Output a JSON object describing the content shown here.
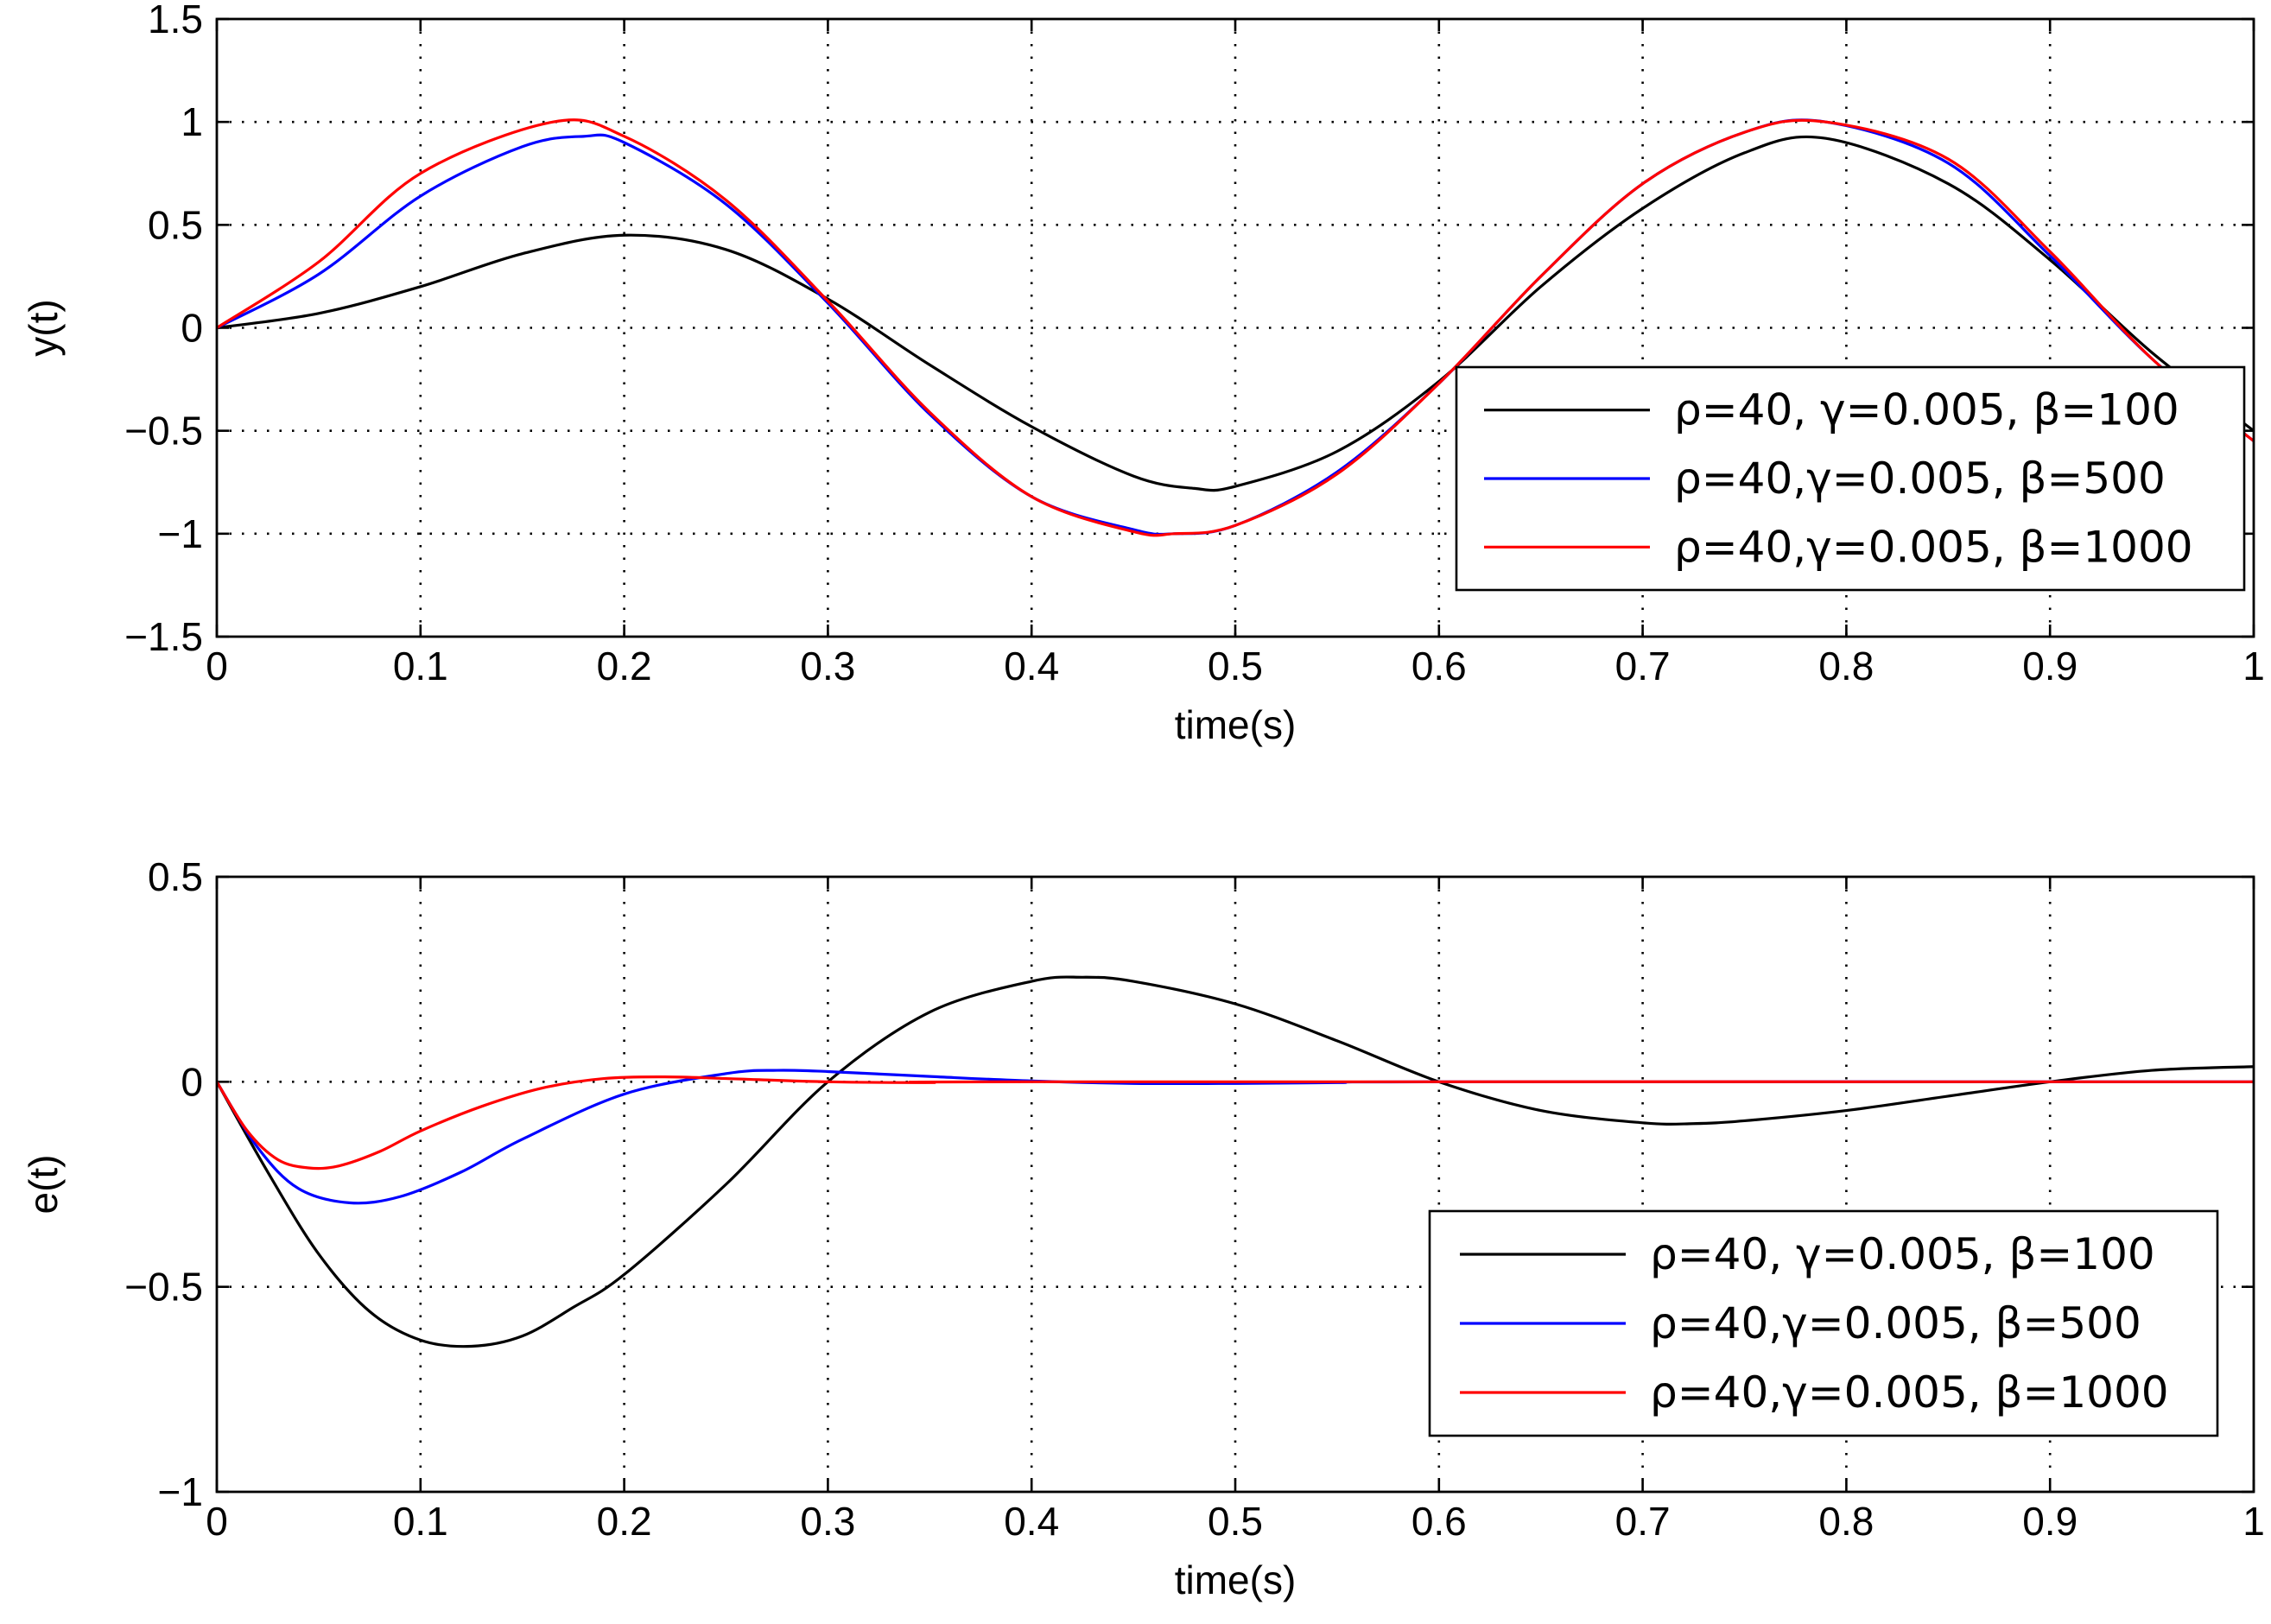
{
  "chart_data": [
    {
      "type": "line",
      "id": "y",
      "title": "",
      "xlabel": "time(s)",
      "ylabel": "y(t)",
      "xlim": [
        0,
        1
      ],
      "ylim": [
        -1.5,
        1.5
      ],
      "xticks": [
        0,
        0.1,
        0.2,
        0.3,
        0.4,
        0.5,
        0.6,
        0.7,
        0.8,
        0.9,
        1
      ],
      "xtick_labels": [
        "0",
        "0.1",
        "0.2",
        "0.3",
        "0.4",
        "0.5",
        "0.6",
        "0.7",
        "0.8",
        "0.9",
        "1"
      ],
      "yticks": [
        -1.5,
        -1,
        -0.5,
        0,
        0.5,
        1,
        1.5
      ],
      "ytick_labels": [
        "−1.5",
        "−1",
        "−0.5",
        "0",
        "0.5",
        "1",
        "1.5"
      ],
      "grid": true,
      "legend_position": "right",
      "series": [
        {
          "name": "ρ=40, γ=0.005, β=100",
          "color": "#000000",
          "x": [
            0,
            0.05,
            0.1,
            0.15,
            0.2,
            0.25,
            0.3,
            0.35,
            0.4,
            0.45,
            0.48,
            0.5,
            0.55,
            0.6,
            0.65,
            0.7,
            0.75,
            0.79,
            0.85,
            0.9,
            0.95,
            1
          ],
          "y": [
            0,
            0.07,
            0.2,
            0.36,
            0.45,
            0.38,
            0.14,
            -0.18,
            -0.48,
            -0.72,
            -0.78,
            -0.77,
            -0.6,
            -0.26,
            0.2,
            0.58,
            0.85,
            0.92,
            0.7,
            0.33,
            -0.12,
            -0.5
          ]
        },
        {
          "name": "ρ=40,γ=0.005, β=500",
          "color": "#0000ff",
          "x": [
            0,
            0.05,
            0.1,
            0.15,
            0.18,
            0.2,
            0.25,
            0.3,
            0.35,
            0.4,
            0.45,
            0.47,
            0.5,
            0.55,
            0.6,
            0.65,
            0.7,
            0.75,
            0.79,
            0.85,
            0.9,
            0.95,
            1
          ],
          "y": [
            0,
            0.26,
            0.64,
            0.88,
            0.93,
            0.9,
            0.6,
            0.12,
            -0.42,
            -0.82,
            -0.98,
            -1.0,
            -0.96,
            -0.7,
            -0.27,
            0.25,
            0.7,
            0.95,
            1.0,
            0.8,
            0.35,
            -0.15,
            -0.55
          ]
        },
        {
          "name": "ρ=40,γ=0.005, β=1000",
          "color": "#ff0000",
          "x": [
            0,
            0.05,
            0.1,
            0.165,
            0.2,
            0.25,
            0.3,
            0.35,
            0.4,
            0.45,
            0.47,
            0.5,
            0.55,
            0.6,
            0.65,
            0.7,
            0.75,
            0.79,
            0.85,
            0.9,
            0.95,
            1
          ],
          "y": [
            0,
            0.32,
            0.75,
            1.0,
            0.93,
            0.62,
            0.13,
            -0.41,
            -0.82,
            -0.99,
            -1.0,
            -0.96,
            -0.71,
            -0.27,
            0.25,
            0.7,
            0.95,
            1.0,
            0.82,
            0.37,
            -0.15,
            -0.55
          ]
        }
      ]
    },
    {
      "type": "line",
      "id": "e",
      "title": "",
      "xlabel": "time(s)",
      "ylabel": "e(t)",
      "xlim": [
        0,
        1
      ],
      "ylim": [
        -1,
        0.5
      ],
      "xticks": [
        0,
        0.1,
        0.2,
        0.3,
        0.4,
        0.5,
        0.6,
        0.7,
        0.8,
        0.9,
        1
      ],
      "xtick_labels": [
        "0",
        "0.1",
        "0.2",
        "0.3",
        "0.4",
        "0.5",
        "0.6",
        "0.7",
        "0.8",
        "0.9",
        "1"
      ],
      "yticks": [
        -1,
        -0.5,
        0,
        0.5
      ],
      "ytick_labels": [
        "−1",
        "−0.5",
        "0",
        "0.5"
      ],
      "grid": true,
      "legend_position": "lower-right",
      "series": [
        {
          "name": "ρ=40, γ=0.005, β=100",
          "color": "#000000",
          "x": [
            0,
            0.025,
            0.05,
            0.075,
            0.1,
            0.125,
            0.15,
            0.175,
            0.2,
            0.25,
            0.3,
            0.35,
            0.4,
            0.425,
            0.45,
            0.5,
            0.55,
            0.6,
            0.65,
            0.7,
            0.725,
            0.75,
            0.8,
            0.85,
            0.9,
            0.95,
            1
          ],
          "y": [
            0,
            -0.22,
            -0.42,
            -0.56,
            -0.63,
            -0.645,
            -0.62,
            -0.55,
            -0.47,
            -0.25,
            0.0,
            0.17,
            0.245,
            0.255,
            0.245,
            0.19,
            0.1,
            0.0,
            -0.07,
            -0.1,
            -0.102,
            -0.095,
            -0.07,
            -0.035,
            0.0,
            0.028,
            0.037
          ]
        },
        {
          "name": "ρ=40,γ=0.005, β=500",
          "color": "#0000ff",
          "x": [
            0,
            0.02,
            0.04,
            0.065,
            0.09,
            0.12,
            0.15,
            0.2,
            0.25,
            0.275,
            0.3,
            0.35,
            0.4,
            0.45,
            0.5,
            0.55,
            0.6,
            1
          ],
          "y": [
            0,
            -0.16,
            -0.26,
            -0.295,
            -0.28,
            -0.22,
            -0.14,
            -0.03,
            0.02,
            0.028,
            0.025,
            0.013,
            0.002,
            -0.004,
            -0.004,
            -0.002,
            0,
            0
          ]
        },
        {
          "name": "ρ=40,γ=0.005, β=1000",
          "color": "#ff0000",
          "x": [
            0,
            0.015,
            0.03,
            0.045,
            0.06,
            0.08,
            0.1,
            0.13,
            0.16,
            0.19,
            0.22,
            0.25,
            0.3,
            0.35,
            0.4,
            1
          ],
          "y": [
            0,
            -0.12,
            -0.19,
            -0.21,
            -0.205,
            -0.17,
            -0.12,
            -0.06,
            -0.015,
            0.008,
            0.012,
            0.008,
            0.0,
            -0.002,
            0,
            0
          ]
        }
      ]
    }
  ]
}
